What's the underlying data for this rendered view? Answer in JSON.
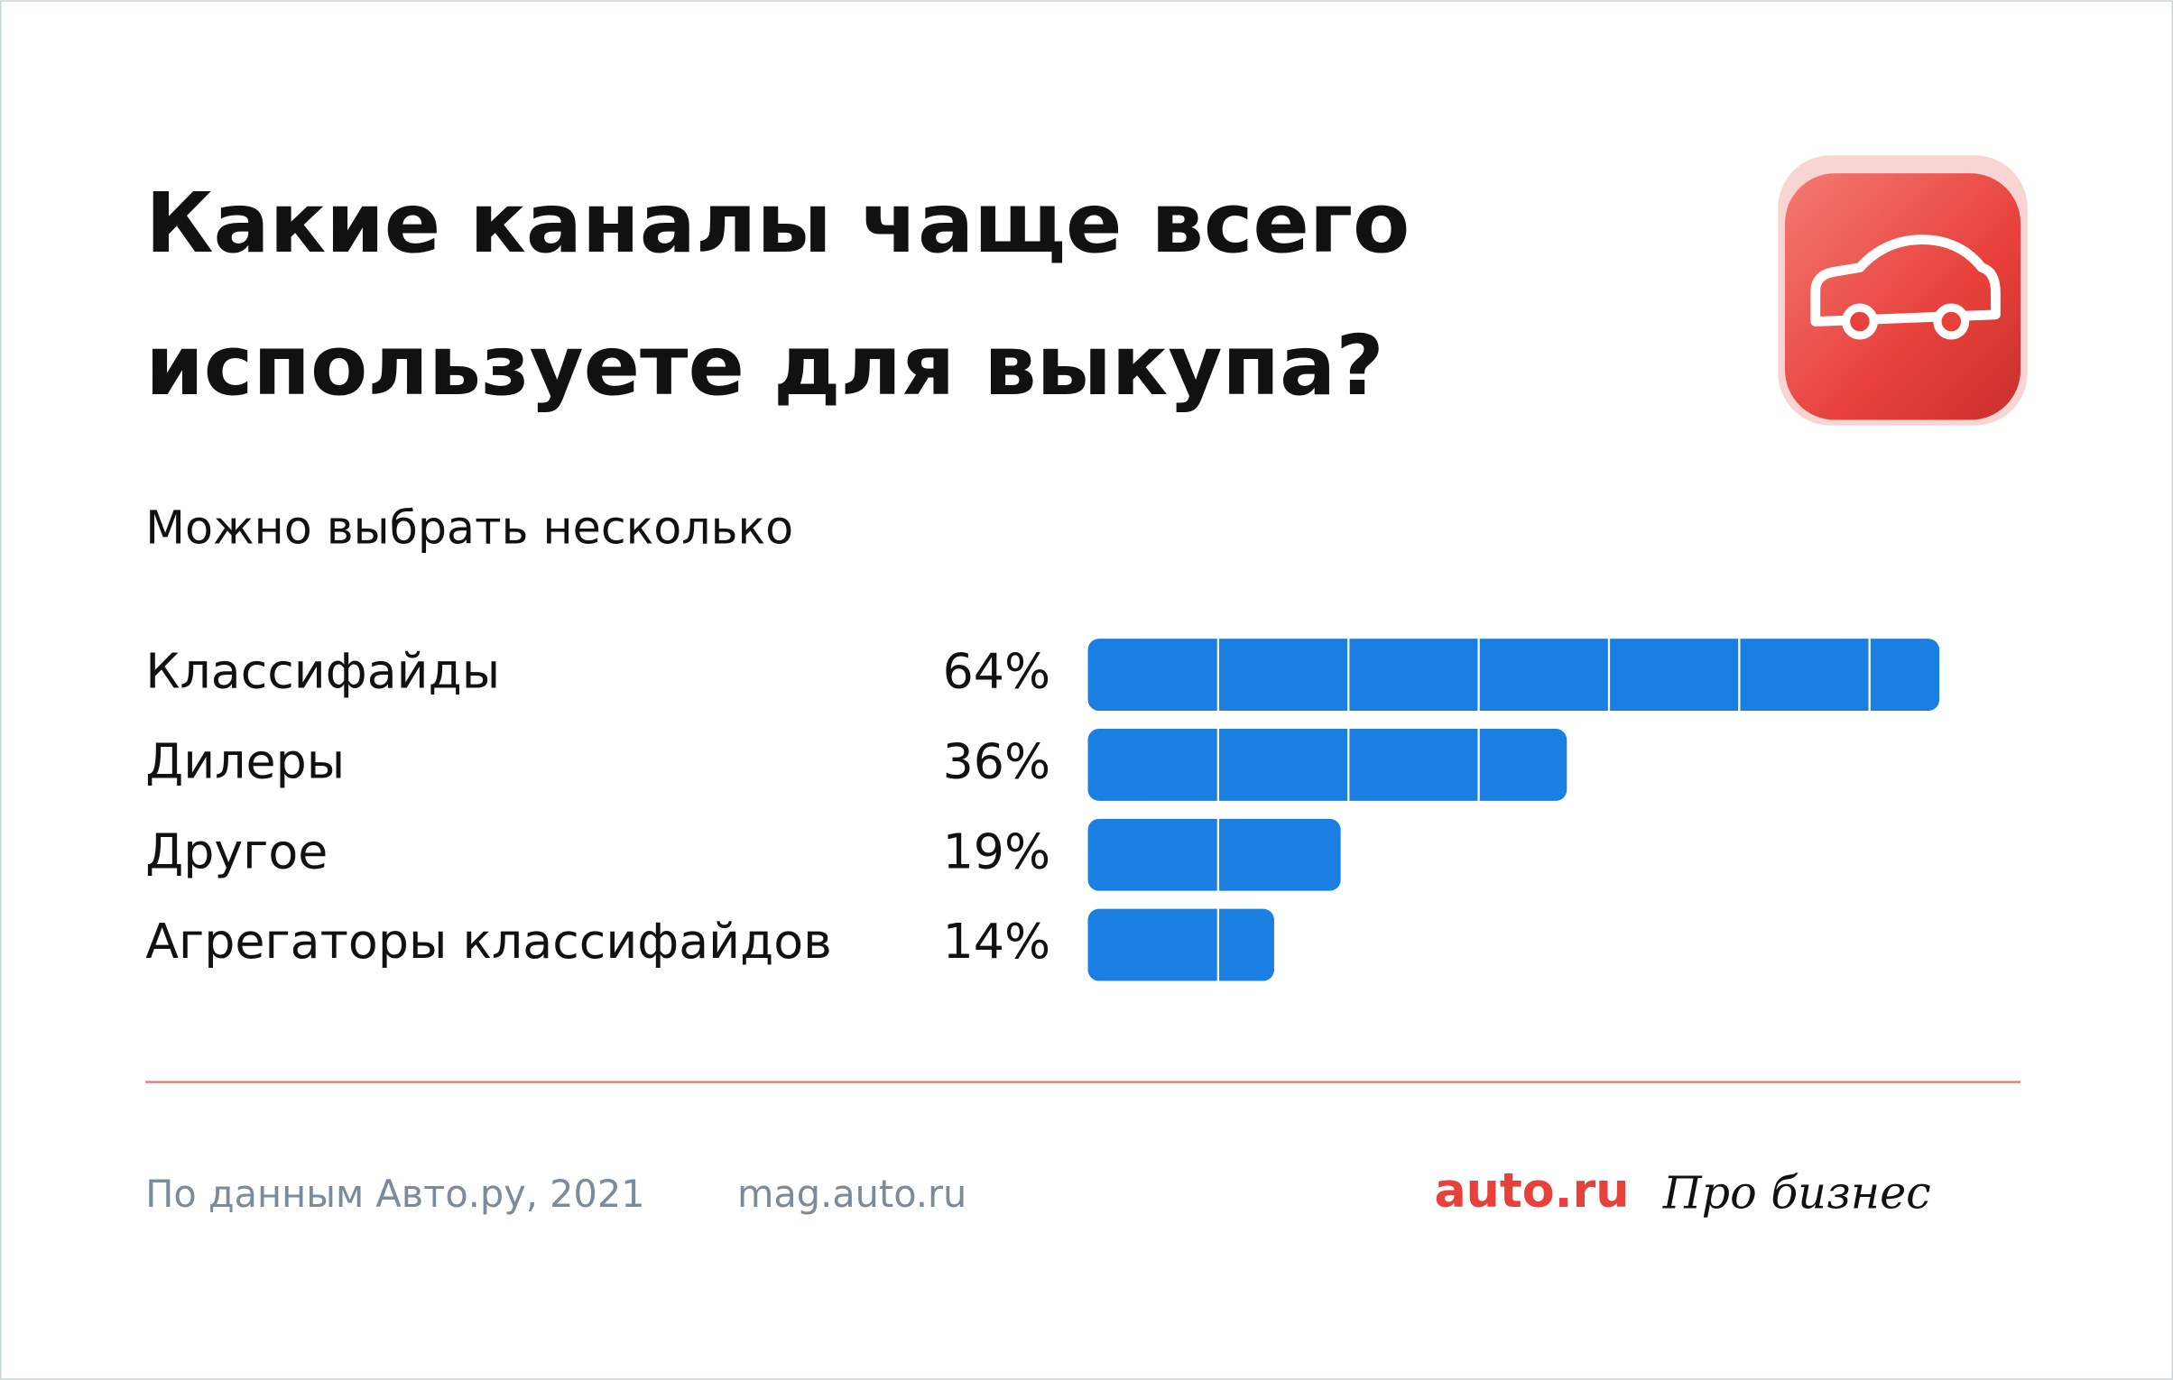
{
  "chart_data": {
    "type": "bar",
    "orientation": "horizontal",
    "title": [
      "Какие каналы чаще всего",
      "используете для выкупа?"
    ],
    "subtitle": "Можно выбрать несколько",
    "categories": [
      "Классифайды",
      "Дилеры",
      "Другое",
      "Агрегаторы классифайдов"
    ],
    "values": [
      64,
      36,
      19,
      14
    ],
    "value_labels": [
      "64%",
      "36%",
      "19%",
      "14%"
    ],
    "color": "#1a7fe0"
  },
  "footer": {
    "source": "По данным Авто.ру, 2021",
    "url": "mag.auto.ru",
    "logo": "auto.ru",
    "logo2": "Про бизнес"
  }
}
